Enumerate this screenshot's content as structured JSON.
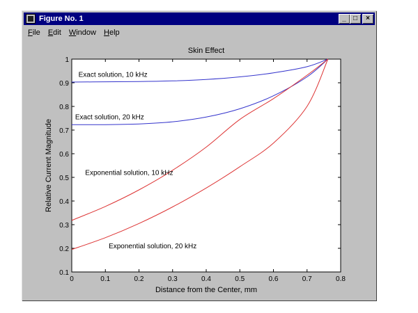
{
  "window": {
    "title": "Figure No. 1",
    "controls": [
      "_",
      "□",
      "×"
    ]
  },
  "menu": [
    {
      "first": "F",
      "rest": "ile"
    },
    {
      "first": "E",
      "rest": "dit"
    },
    {
      "first": "W",
      "rest": "indow"
    },
    {
      "first": "H",
      "rest": "elp"
    }
  ],
  "chart_data": {
    "type": "line",
    "title": "Skin Effect",
    "xlabel": "Distance from the Center, mm",
    "ylabel": "Relative Current Magnitude",
    "xlim": [
      0,
      0.8
    ],
    "ylim": [
      0.1,
      1
    ],
    "xticks": [
      "0",
      "0.1",
      "0.2",
      "0.3",
      "0.4",
      "0.5",
      "0.6",
      "0.7",
      "0.8"
    ],
    "yticks": [
      "0.1",
      "0.2",
      "0.3",
      "0.4",
      "0.5",
      "0.6",
      "0.7",
      "0.8",
      "0.9",
      "1"
    ],
    "grid": false,
    "series": [
      {
        "name": "Exact solution, 10 kHz",
        "color": "#3333cc",
        "x": [
          0,
          0.1,
          0.2,
          0.3,
          0.4,
          0.5,
          0.6,
          0.7,
          0.762
        ],
        "y": [
          0.903,
          0.904,
          0.905,
          0.908,
          0.914,
          0.925,
          0.942,
          0.968,
          1.0
        ]
      },
      {
        "name": "Exact solution, 20 kHz",
        "color": "#3333cc",
        "x": [
          0,
          0.1,
          0.2,
          0.3,
          0.4,
          0.5,
          0.6,
          0.7,
          0.762
        ],
        "y": [
          0.723,
          0.723,
          0.726,
          0.735,
          0.755,
          0.79,
          0.845,
          0.925,
          1.0
        ]
      },
      {
        "name": "Exponential solution, 10 kHz",
        "color": "#dd3333",
        "x": [
          0,
          0.1,
          0.2,
          0.3,
          0.4,
          0.5,
          0.6,
          0.7,
          0.762
        ],
        "y": [
          0.318,
          0.377,
          0.447,
          0.53,
          0.628,
          0.745,
          0.833,
          0.932,
          1.0
        ]
      },
      {
        "name": "Exponential solution, 20 kHz",
        "color": "#dd3333",
        "x": [
          0,
          0.1,
          0.2,
          0.3,
          0.4,
          0.5,
          0.6,
          0.7,
          0.762
        ],
        "y": [
          0.195,
          0.245,
          0.305,
          0.375,
          0.455,
          0.545,
          0.645,
          0.8,
          1.0
        ]
      }
    ],
    "annotations": [
      {
        "text": "Exact solution, 10 kHz",
        "x": 0.02,
        "y": 0.925
      },
      {
        "text": "Exact solution, 20 kHz",
        "x": 0.01,
        "y": 0.745
      },
      {
        "text": "Exponential solution, 10 kHz",
        "x": 0.04,
        "y": 0.51
      },
      {
        "text": "Exponential solution, 20 kHz",
        "x": 0.11,
        "y": 0.2
      }
    ]
  }
}
